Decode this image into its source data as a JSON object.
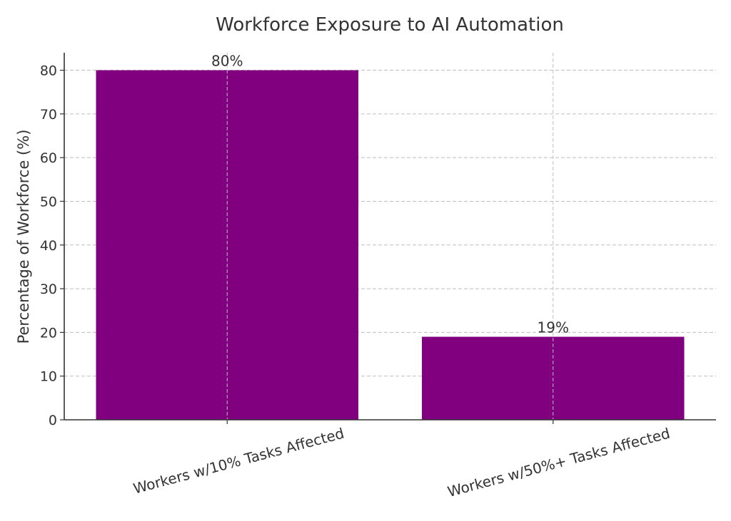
{
  "chart_data": {
    "type": "bar",
    "title": "Workforce Exposure to AI Automation",
    "xlabel": "",
    "ylabel": "Percentage of Workforce (%)",
    "categories": [
      "Workers w/10% Tasks Affected",
      "Workers w/50%+ Tasks Affected"
    ],
    "values": [
      80,
      19
    ],
    "data_labels": [
      "80%",
      "19%"
    ],
    "ylim": [
      0,
      84
    ],
    "yticks": [
      0,
      10,
      20,
      30,
      40,
      50,
      60,
      70,
      80
    ],
    "grid": true,
    "bar_color": "#800080"
  }
}
